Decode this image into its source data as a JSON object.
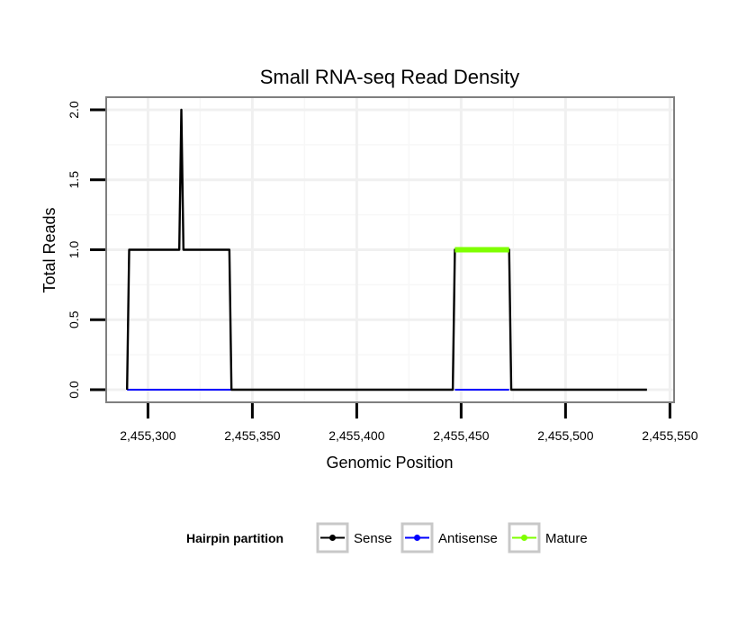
{
  "chart_data": {
    "type": "line",
    "title": "Small RNA-seq Read Density",
    "xlabel": "Genomic Position",
    "ylabel": "Total Reads",
    "xlim": [
      2455280,
      2455552
    ],
    "ylim": [
      -0.09,
      2.09
    ],
    "x_ticks": [
      2455300,
      2455350,
      2455400,
      2455450,
      2455500,
      2455550
    ],
    "x_tick_labels": [
      "2,455,300",
      "2,455,350",
      "2,455,400",
      "2,455,450",
      "2,455,500",
      "2,455,550"
    ],
    "y_ticks": [
      0.0,
      0.5,
      1.0,
      1.5,
      2.0
    ],
    "y_tick_labels": [
      "0.0",
      "0.5",
      "1.0",
      "1.5",
      "2.0"
    ],
    "grid": true,
    "legend": {
      "title": "Hairpin partition",
      "position": "bottom",
      "entries": [
        {
          "name": "Sense",
          "color": "#000000"
        },
        {
          "name": "Antisense",
          "color": "#0000ff"
        },
        {
          "name": "Mature",
          "color": "#7fff00"
        }
      ]
    },
    "series": [
      {
        "name": "Sense",
        "color": "#000000",
        "x": [
          2455290,
          2455291,
          2455315,
          2455316,
          2455317,
          2455339,
          2455340,
          2455446,
          2455447,
          2455473,
          2455474,
          2455539
        ],
        "y": [
          0,
          1,
          1,
          2,
          1,
          1,
          0,
          0,
          1,
          1,
          0,
          0
        ]
      },
      {
        "name": "Antisense",
        "color": "#0000ff",
        "x": [
          2455290,
          2455340,
          2455447,
          2455473
        ],
        "y": [
          0,
          0,
          0,
          0
        ],
        "segments": [
          [
            0,
            1
          ],
          [
            2,
            3
          ]
        ]
      },
      {
        "name": "Mature",
        "color": "#7fff00",
        "x": [
          2455447,
          2455473
        ],
        "y": [
          1,
          1
        ]
      }
    ]
  }
}
